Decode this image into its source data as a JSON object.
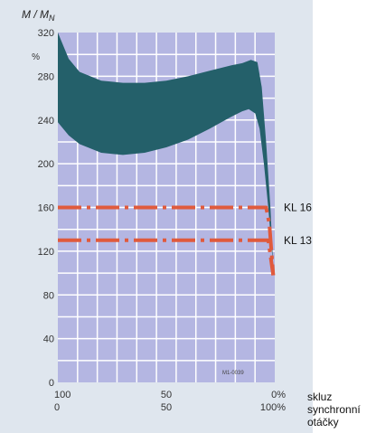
{
  "chart_data": {
    "type": "line",
    "ylabel": "M / M",
    "ylabel_sub": "N",
    "y_unit": "%",
    "ylim": [
      0,
      320
    ],
    "y_ticks": [
      0,
      40,
      80,
      120,
      160,
      200,
      240,
      280,
      320
    ],
    "x_ticks_slip": [
      "100",
      "50",
      "0%"
    ],
    "x_ticks_speed": [
      "0",
      "50",
      "100%"
    ],
    "x_label_slip": "skluz",
    "x_label_speed": [
      "synchronní",
      "otáčky"
    ],
    "x_range_speed": [
      0,
      100
    ],
    "grid": true,
    "band": {
      "upper": [
        [
          0,
          320
        ],
        [
          5,
          296
        ],
        [
          10,
          284
        ],
        [
          20,
          276
        ],
        [
          30,
          274
        ],
        [
          40,
          274
        ],
        [
          50,
          276
        ],
        [
          60,
          280
        ],
        [
          70,
          285
        ],
        [
          80,
          290
        ],
        [
          85,
          292
        ],
        [
          89,
          295
        ],
        [
          92,
          293
        ],
        [
          94,
          270
        ],
        [
          96,
          220
        ],
        [
          98,
          160
        ],
        [
          99.3,
          105
        ]
      ],
      "lower": [
        [
          0,
          238
        ],
        [
          5,
          226
        ],
        [
          10,
          218
        ],
        [
          20,
          210
        ],
        [
          30,
          208
        ],
        [
          40,
          210
        ],
        [
          50,
          215
        ],
        [
          60,
          222
        ],
        [
          70,
          232
        ],
        [
          80,
          243
        ],
        [
          85,
          248
        ],
        [
          88,
          250
        ],
        [
          91,
          246
        ],
        [
          93,
          232
        ],
        [
          95,
          200
        ],
        [
          97,
          160
        ],
        [
          99,
          112
        ],
        [
          99.3,
          105
        ]
      ],
      "color": "#24606a"
    },
    "series": [
      {
        "name": "KL 16",
        "x": [
          0,
          96,
          97.5,
          99.3
        ],
        "y": [
          160,
          160,
          145,
          98
        ],
        "color": "#e05a3c"
      },
      {
        "name": "KL 13",
        "x": [
          0,
          97,
          99.3
        ],
        "y": [
          130,
          130,
          98
        ],
        "color": "#e05a3c"
      }
    ],
    "code_label": "M1-0039"
  }
}
